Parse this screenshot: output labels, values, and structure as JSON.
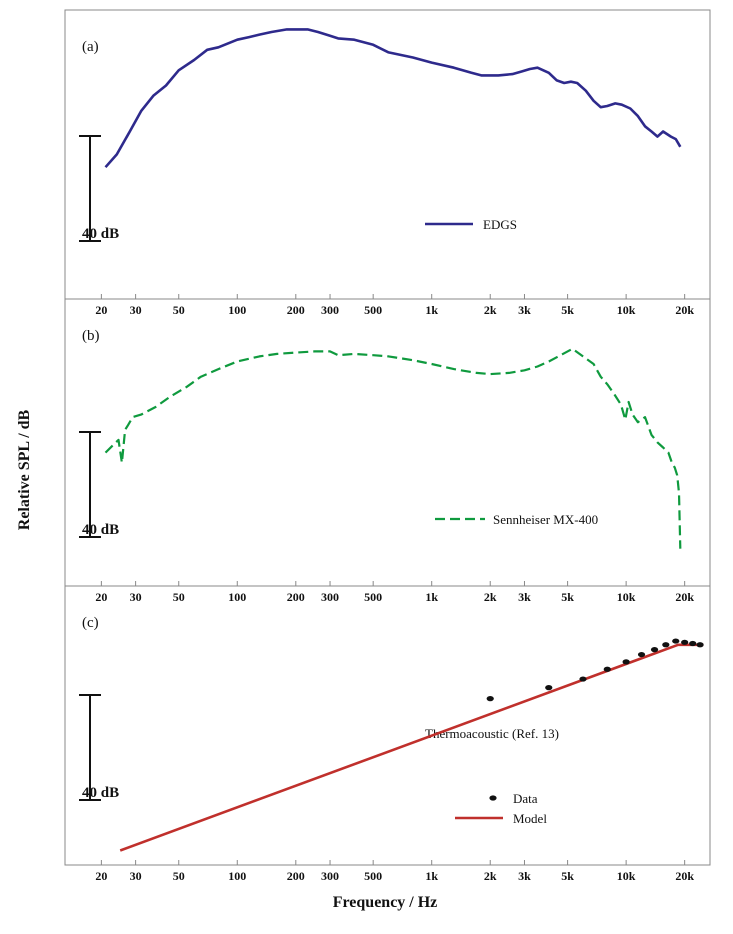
{
  "figure": {
    "ylabel": "Relative SPL / dB",
    "xlabel": "Frequency / Hz",
    "scale_bar_label": "40 dB",
    "xticks": {
      "values": [
        20,
        30,
        50,
        100,
        200,
        300,
        500,
        1000,
        2000,
        3000,
        5000,
        10000,
        20000
      ],
      "labels": [
        "20",
        "30",
        "50",
        "100",
        "200",
        "300",
        "500",
        "1k",
        "2k",
        "3k",
        "5k",
        "10k",
        "20k"
      ]
    },
    "colors": {
      "edgs": "#2e2a8c",
      "sennheiser": "#0f9a3e",
      "model": "#c0302c",
      "data": "#111111",
      "axis": "#888888"
    }
  },
  "chart_data": [
    {
      "type": "line",
      "panel": "(a)",
      "xscale": "log",
      "xlim": [
        13,
        27000
      ],
      "ylim": [
        0,
        100
      ],
      "scale_bar_db": 40,
      "series": [
        {
          "name": "EDGS",
          "x": [
            21,
            24,
            28,
            32,
            37,
            43,
            50,
            60,
            70,
            80,
            100,
            115,
            130,
            150,
            180,
            200,
            230,
            260,
            300,
            330,
            400,
            500,
            600,
            800,
            1000,
            1300,
            1600,
            1800,
            2200,
            2600,
            2900,
            3200,
            3500,
            4000,
            4400,
            4800,
            5200,
            5600,
            6200,
            6800,
            7400,
            8000,
            8800,
            9500,
            10500,
            11500,
            12500,
            13500,
            14500,
            15500,
            17000,
            18000,
            19000
          ],
          "y": [
            47,
            52,
            61,
            69,
            75,
            79,
            85,
            89,
            93,
            94,
            97,
            98,
            99,
            100,
            101,
            101,
            101,
            100,
            98.5,
            97.5,
            97,
            95,
            92,
            90,
            88,
            86,
            84,
            83,
            83,
            83.5,
            84.5,
            85.5,
            86,
            84,
            81,
            80,
            80.5,
            80,
            77,
            73,
            70.5,
            71,
            72,
            71.5,
            70,
            67,
            63,
            61,
            59,
            61,
            59,
            58,
            55
          ]
        }
      ]
    },
    {
      "type": "line",
      "panel": "(b)",
      "xscale": "log",
      "xlim": [
        13,
        27000
      ],
      "ylim": [
        0,
        100
      ],
      "scale_bar_db": 40,
      "series": [
        {
          "name": "Sennheiser MX-400",
          "x": [
            21,
            23,
            24.5,
            25.5,
            26.5,
            27.5,
            29,
            32,
            38,
            45,
            55,
            65,
            80,
            100,
            130,
            160,
            200,
            250,
            300,
            330,
            400,
            500,
            600,
            800,
            1000,
            1300,
            1700,
            2000,
            2500,
            3000,
            3500,
            4000,
            4600,
            5300,
            6000,
            6800,
            7400,
            8000,
            8700,
            9400,
            9900,
            10300,
            10800,
            11500,
            12500,
            13500,
            14500,
            15500,
            16500,
            17200,
            17800,
            18300,
            18700,
            19000
          ],
          "y": [
            48,
            51,
            53,
            44,
            57,
            59,
            62,
            63,
            66,
            70,
            74,
            78,
            81,
            84,
            86,
            87,
            87.5,
            88,
            88,
            86.5,
            87,
            86.5,
            86,
            84.5,
            83,
            81,
            79.5,
            79,
            79.5,
            80.5,
            82,
            84,
            86.5,
            89,
            86,
            83,
            78,
            75,
            71,
            67,
            61,
            68,
            63,
            60,
            62,
            55,
            52,
            50,
            48,
            44,
            42,
            39,
            32,
            10
          ]
        }
      ]
    },
    {
      "type": "line",
      "panel": "(c)",
      "xscale": "log",
      "xlim": [
        13,
        27000
      ],
      "ylim": [
        0,
        100
      ],
      "scale_bar_db": 40,
      "series": [
        {
          "name": "Model",
          "kind": "line",
          "x": [
            25,
            18500,
            25000
          ],
          "y": [
            1,
            85,
            85
          ]
        },
        {
          "name": "Data",
          "kind": "scatter",
          "x": [
            2000,
            4000,
            6000,
            8000,
            10000,
            12000,
            14000,
            16000,
            18000,
            20000,
            22000,
            24000
          ],
          "y": [
            63,
            67.5,
            71,
            75,
            78,
            81,
            83,
            85,
            86.5,
            86,
            85.5,
            85
          ]
        }
      ]
    }
  ],
  "panels": [
    {
      "label": "(a)",
      "legend": [
        {
          "text": "EDGS",
          "style": "line",
          "color": "#2e2a8c"
        }
      ]
    },
    {
      "label": "(b)",
      "legend": [
        {
          "text": "Sennheiser MX-400",
          "style": "dashed",
          "color": "#0f9a3e"
        }
      ]
    },
    {
      "label": "(c)",
      "annotation": "Thermoacoustic (Ref. 13)",
      "legend": [
        {
          "text": "Data",
          "style": "dot",
          "color": "#111111"
        },
        {
          "text": "Model",
          "style": "line",
          "color": "#c0302c"
        }
      ]
    }
  ]
}
